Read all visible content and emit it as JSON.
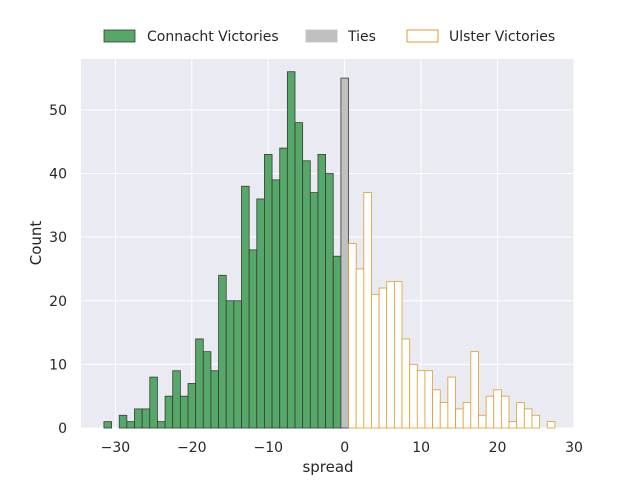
{
  "chart_data": {
    "type": "bar",
    "xlabel": "spread",
    "ylabel": "Count",
    "xlim": [
      -34.5,
      30.0
    ],
    "ylim": [
      0,
      58
    ],
    "xticks": [
      -30,
      -20,
      -10,
      0,
      10,
      20,
      30
    ],
    "yticks": [
      0,
      10,
      20,
      30,
      40,
      50
    ],
    "xtick_labels": [
      "−30",
      "−20",
      "−10",
      "0",
      "10",
      "20",
      "30"
    ],
    "ytick_labels": [
      "0",
      "10",
      "20",
      "30",
      "40",
      "50"
    ],
    "bin_width": 1,
    "grid": true,
    "legend_position": "top-center",
    "series": [
      {
        "name": "Connacht Victories",
        "fill": "#55a868",
        "edge": "#3a3a3a",
        "x": [
          -31,
          -29,
          -28,
          -27,
          -26,
          -25,
          -24,
          -23,
          -22,
          -21,
          -20,
          -19,
          -18,
          -17,
          -16,
          -15,
          -14,
          -13,
          -12,
          -11,
          -10,
          -9,
          -8,
          -7,
          -6,
          -5,
          -4,
          -3,
          -2,
          -1
        ],
        "values": [
          1,
          2,
          1,
          3,
          3,
          8,
          1,
          5,
          9,
          5,
          7,
          14,
          12,
          9,
          24,
          20,
          20,
          38,
          28,
          36,
          43,
          39,
          44,
          56,
          48,
          42,
          37,
          43,
          40,
          27
        ]
      },
      {
        "name": "Ties",
        "fill": "#c0c0c0",
        "edge": "#3a3a3a",
        "x": [
          0
        ],
        "values": [
          55
        ]
      },
      {
        "name": "Ulster Victories",
        "fill": "#ffffff",
        "edge": "#dd9e2c",
        "x": [
          1,
          2,
          3,
          4,
          5,
          6,
          7,
          8,
          9,
          10,
          11,
          12,
          13,
          14,
          15,
          16,
          17,
          18,
          19,
          20,
          21,
          22,
          23,
          24,
          25,
          26,
          27
        ],
        "values": [
          29,
          25,
          37,
          21,
          22,
          23,
          23,
          14,
          10,
          9,
          9,
          6,
          4,
          8,
          3,
          4,
          12,
          2,
          5,
          6,
          5,
          1,
          4,
          3,
          2,
          0,
          1
        ]
      }
    ]
  }
}
